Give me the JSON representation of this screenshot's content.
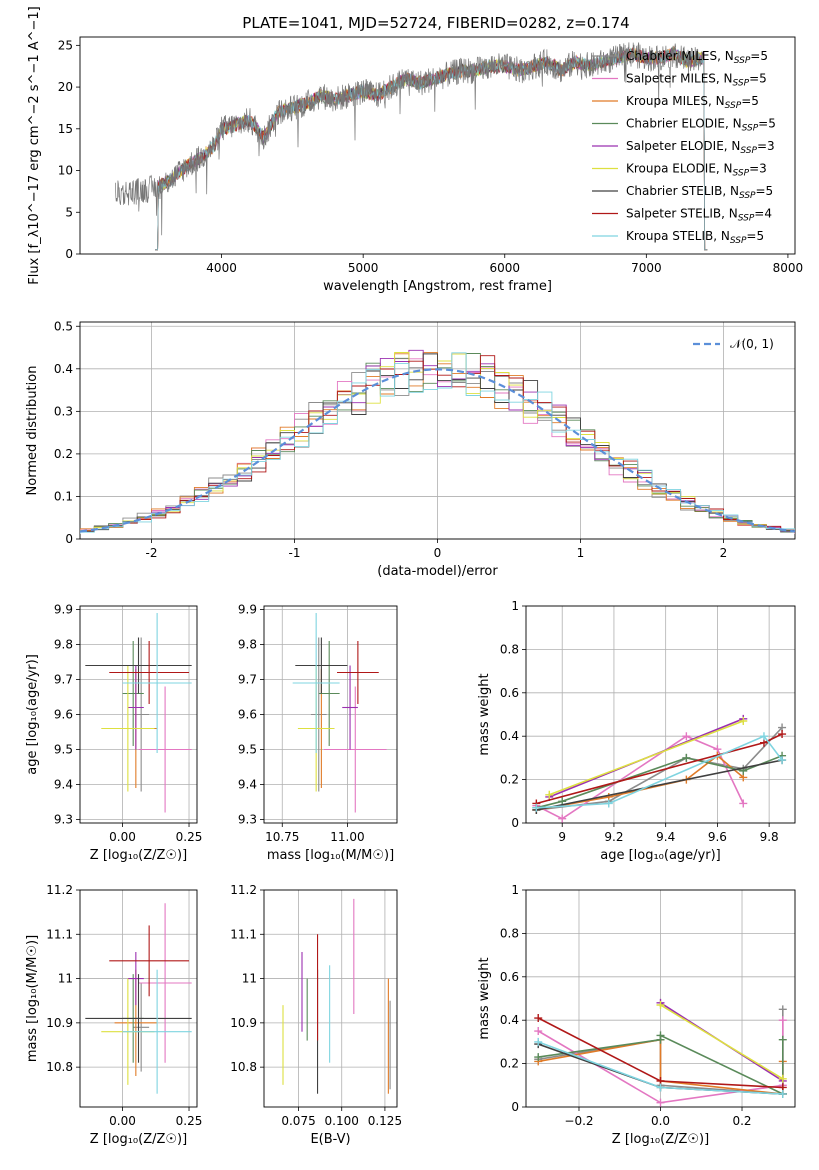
{
  "figure": {
    "title": "PLATE=1041, MJD=52724, FIBERID=0282, z=0.174"
  },
  "series_colors": {
    "Chabrier MILES": "#8c8c8c",
    "Salpeter MILES": "#e377c2",
    "Kroupa MILES": "#e07b28",
    "Chabrier ELODIE": "#5a8a5a",
    "Salpeter ELODIE": "#9b30b0",
    "Kroupa ELODIE": "#dde040",
    "Chabrier STELIB": "#404040",
    "Salpeter STELIB": "#b01818",
    "Kroupa STELIB": "#7fd4e0"
  },
  "chart_data": [
    {
      "id": "spectrum",
      "type": "line",
      "xlabel": "wavelength [Angstrom, rest frame]",
      "ylabel": "Flux [f_λ10^−17 erg cm^−2 s^−1 A^−1]",
      "xlim": [
        3000,
        8050
      ],
      "ylim": [
        0,
        26
      ],
      "xticks": [
        4000,
        5000,
        6000,
        7000,
        8000
      ],
      "yticks": [
        0,
        5,
        10,
        15,
        20,
        25
      ],
      "grid": false,
      "legend_position": "right",
      "legend": [
        {
          "series": "Chabrier MILES",
          "text": "Chabrier MILES, N",
          "sub": "SSP",
          "suffix": "=5"
        },
        {
          "series": "Salpeter MILES",
          "text": "Salpeter MILES, N",
          "sub": "SSP",
          "suffix": "=5"
        },
        {
          "series": "Kroupa MILES",
          "text": "Kroupa MILES, N",
          "sub": "SSP",
          "suffix": "=5"
        },
        {
          "series": "Chabrier ELODIE",
          "text": "Chabrier ELODIE, N",
          "sub": "SSP",
          "suffix": "=5"
        },
        {
          "series": "Salpeter ELODIE",
          "text": "Salpeter ELODIE, N",
          "sub": "SSP",
          "suffix": "=3"
        },
        {
          "series": "Kroupa ELODIE",
          "text": "Kroupa ELODIE, N",
          "sub": "SSP",
          "suffix": "=3"
        },
        {
          "series": "Chabrier STELIB",
          "text": "Chabrier STELIB, N",
          "sub": "SSP",
          "suffix": "=5"
        },
        {
          "series": "Salpeter STELIB",
          "text": "Salpeter STELIB, N",
          "sub": "SSP",
          "suffix": "=4"
        },
        {
          "series": "Kroupa STELIB",
          "text": "Kroupa STELIB, N",
          "sub": "SSP",
          "suffix": "=5"
        }
      ],
      "observed_continuum": {
        "x": [
          3250,
          3400,
          3550,
          3650,
          3750,
          3850,
          3950,
          4000,
          4100,
          4200,
          4300,
          4400,
          4500,
          4600,
          4700,
          4800,
          4900,
          5000,
          5100,
          5200,
          5300,
          5400,
          5500,
          5600,
          5700,
          5800,
          5900,
          6000,
          6100,
          6200,
          6300,
          6400,
          6500,
          6600,
          6700,
          6800,
          6900,
          7000,
          7100,
          7200,
          7300,
          7400
        ],
        "y": [
          7.2,
          7.5,
          8.0,
          9.0,
          10.5,
          11.5,
          13.0,
          15.0,
          15.5,
          16.0,
          14.0,
          17.0,
          17.5,
          18.0,
          19.0,
          18.5,
          19.0,
          19.5,
          19.0,
          20.0,
          21.0,
          20.5,
          21.0,
          21.5,
          22.0,
          22.0,
          22.5,
          22.5,
          22.0,
          22.5,
          23.0,
          22.0,
          23.0,
          22.5,
          23.0,
          23.5,
          24.0,
          23.5,
          23.5,
          24.0,
          23.0,
          23.5
        ]
      },
      "model_cutoffs": {
        "blue_end": 3530,
        "red_end": 7430
      }
    },
    {
      "id": "residuals",
      "type": "histogram",
      "xlabel": "(data-model)/error",
      "ylabel": "Normed distribution",
      "xlim": [
        -2.5,
        2.5
      ],
      "ylim": [
        0,
        0.51
      ],
      "xticks": [
        -2,
        -1,
        0,
        1,
        2
      ],
      "yticks": [
        0,
        0.1,
        0.2,
        0.3,
        0.4,
        0.5
      ],
      "grid": true,
      "legend_position": "upper right",
      "reference_curve": {
        "label": "𝒩(0, 1)",
        "mean": 0,
        "sigma": 1,
        "color": "#5b8fd9"
      },
      "bin_width": 0.1
    },
    {
      "id": "age-vs-Z",
      "type": "errorbar",
      "xlabel": "Z [log₁₀(Z/Z☉)]",
      "ylabel": "age  [log₁₀(age/yr)]",
      "xlim": [
        -0.16,
        0.28
      ],
      "ylim": [
        9.29,
        9.91
      ],
      "xticks": [
        0.0,
        0.25
      ],
      "xticklabels": [
        "0.00",
        "0.25"
      ],
      "yticks": [
        9.3,
        9.4,
        9.5,
        9.6,
        9.7,
        9.8,
        9.9
      ],
      "grid": true,
      "points": [
        {
          "series": "Chabrier MILES",
          "x": 0.07,
          "xerr": 0.03,
          "y": 9.6,
          "yerr": 0.22
        },
        {
          "series": "Salpeter MILES",
          "x": 0.16,
          "xerr": 0.1,
          "y": 9.5,
          "yerr": 0.18
        },
        {
          "series": "Kroupa MILES",
          "x": 0.05,
          "xerr": 0.08,
          "y": 9.56,
          "yerr": 0.17
        },
        {
          "series": "Chabrier ELODIE",
          "x": 0.04,
          "xerr": 0.04,
          "y": 9.66,
          "yerr": 0.15
        },
        {
          "series": "Salpeter ELODIE",
          "x": 0.05,
          "xerr": 0.03,
          "y": 9.62,
          "yerr": 0.12
        },
        {
          "series": "Kroupa ELODIE",
          "x": 0.02,
          "xerr": 0.1,
          "y": 9.56,
          "yerr": 0.18
        },
        {
          "series": "Chabrier STELIB",
          "x": 0.06,
          "xerr": 0.2,
          "y": 9.74,
          "yerr": 0.08
        },
        {
          "series": "Salpeter STELIB",
          "x": 0.1,
          "xerr": 0.15,
          "y": 9.72,
          "yerr": 0.09
        },
        {
          "series": "Kroupa STELIB",
          "x": 0.13,
          "xerr": 0.13,
          "y": 9.69,
          "yerr": 0.2
        }
      ]
    },
    {
      "id": "age-vs-mass",
      "type": "errorbar",
      "xlabel": "mass [log₁₀(M/M☉)]",
      "ylabel": "",
      "xlim": [
        10.68,
        11.19
      ],
      "ylim": [
        9.29,
        9.91
      ],
      "xticks": [
        10.75,
        11.0
      ],
      "xticklabels": [
        "10.75",
        "11.00"
      ],
      "yticks": [
        9.3,
        9.4,
        9.5,
        9.6,
        9.7,
        9.8,
        9.9
      ],
      "grid": true,
      "points": [
        {
          "series": "Chabrier MILES",
          "x": 10.89,
          "xerr": 0.03,
          "y": 9.6,
          "yerr": 0.22
        },
        {
          "series": "Salpeter MILES",
          "x": 11.03,
          "xerr": 0.12,
          "y": 9.5,
          "yerr": 0.18
        },
        {
          "series": "Kroupa MILES",
          "x": 10.9,
          "xerr": 0.05,
          "y": 9.56,
          "yerr": 0.17
        },
        {
          "series": "Chabrier ELODIE",
          "x": 10.93,
          "xerr": 0.04,
          "y": 9.66,
          "yerr": 0.15
        },
        {
          "series": "Salpeter ELODIE",
          "x": 11.01,
          "xerr": 0.03,
          "y": 9.62,
          "yerr": 0.12
        },
        {
          "series": "Kroupa ELODIE",
          "x": 10.88,
          "xerr": 0.07,
          "y": 9.56,
          "yerr": 0.18
        },
        {
          "series": "Chabrier STELIB",
          "x": 10.9,
          "xerr": 0.1,
          "y": 9.74,
          "yerr": 0.08
        },
        {
          "series": "Salpeter STELIB",
          "x": 11.04,
          "xerr": 0.08,
          "y": 9.72,
          "yerr": 0.09
        },
        {
          "series": "Kroupa STELIB",
          "x": 10.88,
          "xerr": 0.09,
          "y": 9.69,
          "yerr": 0.2
        }
      ]
    },
    {
      "id": "weight-vs-age",
      "type": "line",
      "xlabel": "age  [log₁₀(age/yr)]",
      "ylabel": "mass weight",
      "xlim": [
        8.86,
        9.9
      ],
      "ylim": [
        0,
        1.0
      ],
      "xticks": [
        9.0,
        9.2,
        9.4,
        9.6,
        9.8
      ],
      "yticks": [
        0,
        0.2,
        0.4,
        0.6,
        0.8,
        1.0
      ],
      "grid": true,
      "series": [
        {
          "series": "Chabrier MILES",
          "x": [
            8.9,
            9.18,
            9.48,
            9.7,
            9.85
          ],
          "y": [
            0.06,
            0.1,
            0.3,
            0.25,
            0.44
          ]
        },
        {
          "series": "Salpeter MILES",
          "x": [
            8.9,
            9.0,
            9.48,
            9.6,
            9.7
          ],
          "y": [
            0.08,
            0.02,
            0.4,
            0.34,
            0.09
          ]
        },
        {
          "series": "Kroupa MILES",
          "x": [
            8.9,
            9.18,
            9.48,
            9.6,
            9.7
          ],
          "y": [
            0.06,
            0.12,
            0.2,
            0.31,
            0.21
          ]
        },
        {
          "series": "Chabrier ELODIE",
          "x": [
            8.9,
            9.0,
            9.48,
            9.7,
            9.85
          ],
          "y": [
            0.07,
            0.1,
            0.3,
            0.24,
            0.31
          ]
        },
        {
          "series": "Salpeter ELODIE",
          "x": [
            8.95,
            9.7
          ],
          "y": [
            0.12,
            0.48
          ]
        },
        {
          "series": "Kroupa ELODIE",
          "x": [
            8.95,
            9.7
          ],
          "y": [
            0.13,
            0.47
          ]
        },
        {
          "series": "Chabrier STELIB",
          "x": [
            8.9,
            9.85
          ],
          "y": [
            0.06,
            0.29
          ]
        },
        {
          "series": "Salpeter STELIB",
          "x": [
            8.9,
            9.78,
            9.85
          ],
          "y": [
            0.09,
            0.37,
            0.41
          ]
        },
        {
          "series": "Kroupa STELIB",
          "x": [
            8.9,
            9.18,
            9.78,
            9.85
          ],
          "y": [
            0.07,
            0.09,
            0.4,
            0.29
          ]
        }
      ]
    },
    {
      "id": "mass-vs-Z",
      "type": "errorbar",
      "xlabel": "Z [log₁₀(Z/Z☉)]",
      "ylabel": "mass [log₁₀(M/M☉)]",
      "xlim": [
        -0.16,
        0.28
      ],
      "ylim": [
        10.71,
        11.2
      ],
      "xticks": [
        0.0,
        0.25
      ],
      "xticklabels": [
        "0.00",
        "0.25"
      ],
      "yticks": [
        10.8,
        10.9,
        11.0,
        11.1,
        11.2
      ],
      "grid": true,
      "points": [
        {
          "series": "Chabrier MILES",
          "x": 0.07,
          "xerr": 0.03,
          "y": 10.89,
          "yerr": 0.1
        },
        {
          "series": "Salpeter MILES",
          "x": 0.16,
          "xerr": 0.1,
          "y": 10.99,
          "yerr": 0.18
        },
        {
          "series": "Kroupa MILES",
          "x": 0.05,
          "xerr": 0.08,
          "y": 10.9,
          "yerr": 0.12
        },
        {
          "series": "Chabrier ELODIE",
          "x": 0.04,
          "xerr": 0.04,
          "y": 10.91,
          "yerr": 0.1
        },
        {
          "series": "Salpeter ELODIE",
          "x": 0.05,
          "xerr": 0.03,
          "y": 11.0,
          "yerr": 0.06
        },
        {
          "series": "Kroupa ELODIE",
          "x": 0.02,
          "xerr": 0.1,
          "y": 10.88,
          "yerr": 0.12
        },
        {
          "series": "Chabrier STELIB",
          "x": 0.06,
          "xerr": 0.2,
          "y": 10.91,
          "yerr": 0.1
        },
        {
          "series": "Salpeter STELIB",
          "x": 0.1,
          "xerr": 0.15,
          "y": 11.04,
          "yerr": 0.08
        },
        {
          "series": "Kroupa STELIB",
          "x": 0.13,
          "xerr": 0.13,
          "y": 10.88,
          "yerr": 0.14
        }
      ]
    },
    {
      "id": "mass-vs-ebv",
      "type": "errorbar",
      "xlabel": "E(B-V)",
      "ylabel": "",
      "xlim": [
        0.055,
        0.132
      ],
      "ylim": [
        10.71,
        11.2
      ],
      "xticks": [
        0.075,
        0.1,
        0.125
      ],
      "xticklabels": [
        "0.075",
        "0.100",
        "0.125"
      ],
      "yticks": [
        10.8,
        10.9,
        11.0,
        11.1,
        11.2
      ],
      "grid": true,
      "points": [
        {
          "series": "Salpeter MILES",
          "x": 0.107,
          "y": 11.05,
          "yerr": 0.13
        },
        {
          "series": "Kroupa MILES",
          "x": 0.127,
          "y": 10.87,
          "yerr": 0.13
        },
        {
          "series": "Chabrier ELODIE",
          "x": 0.08,
          "y": 10.93,
          "yerr": 0.07
        },
        {
          "series": "Salpeter ELODIE",
          "x": 0.077,
          "y": 10.97,
          "yerr": 0.09
        },
        {
          "series": "Kroupa ELODIE",
          "x": 0.066,
          "y": 10.85,
          "yerr": 0.09
        },
        {
          "series": "Chabrier STELIB",
          "x": 0.086,
          "y": 10.88,
          "yerr": 0.14
        },
        {
          "series": "Salpeter STELIB",
          "x": 0.086,
          "y": 10.98,
          "yerr": 0.12
        },
        {
          "series": "Kroupa STELIB",
          "x": 0.093,
          "y": 10.92,
          "yerr": 0.11
        },
        {
          "series": "Chabrier MILES",
          "x": 0.128,
          "y": 10.85,
          "yerr": 0.1
        }
      ]
    },
    {
      "id": "weight-vs-Z",
      "type": "line",
      "xlabel": "Z [log₁₀(Z/Z☉)]",
      "ylabel": "mass weight",
      "xlim": [
        -0.33,
        0.33
      ],
      "ylim": [
        0,
        1.0
      ],
      "xticks": [
        -0.2,
        0.0,
        0.2
      ],
      "xticklabels": [
        "−0.2",
        "0.0",
        "0.2"
      ],
      "yticks": [
        0,
        0.2,
        0.4,
        0.6,
        0.8,
        1.0
      ],
      "grid": true,
      "series": [
        {
          "series": "Chabrier MILES",
          "x": [
            -0.3,
            0.0,
            0.0,
            0.3,
            0.3
          ],
          "y": [
            0.22,
            0.31,
            0.1,
            0.06,
            0.45
          ]
        },
        {
          "series": "Salpeter MILES",
          "x": [
            -0.3,
            0.0,
            0.3,
            0.3
          ],
          "y": [
            0.35,
            0.02,
            0.1,
            0.4
          ]
        },
        {
          "series": "Kroupa MILES",
          "x": [
            -0.3,
            0.0,
            0.0,
            0.3,
            0.3
          ],
          "y": [
            0.21,
            0.31,
            0.12,
            0.06,
            0.21
          ]
        },
        {
          "series": "Chabrier ELODIE",
          "x": [
            -0.3,
            0.0,
            0.0,
            0.3,
            0.3
          ],
          "y": [
            0.23,
            0.31,
            0.33,
            0.06,
            0.31
          ]
        },
        {
          "series": "Salpeter ELODIE",
          "x": [
            0.0,
            0.3
          ],
          "y": [
            0.48,
            0.12
          ]
        },
        {
          "series": "Kroupa ELODIE",
          "x": [
            0.0,
            0.3
          ],
          "y": [
            0.47,
            0.13
          ]
        },
        {
          "series": "Chabrier STELIB",
          "x": [
            -0.3,
            0.0,
            0.3
          ],
          "y": [
            0.29,
            0.09,
            0.06
          ]
        },
        {
          "series": "Salpeter STELIB",
          "x": [
            -0.3,
            0.0,
            0.3
          ],
          "y": [
            0.41,
            0.12,
            0.09
          ]
        },
        {
          "series": "Kroupa STELIB",
          "x": [
            -0.3,
            0.0,
            0.3
          ],
          "y": [
            0.3,
            0.09,
            0.06
          ]
        }
      ]
    }
  ]
}
